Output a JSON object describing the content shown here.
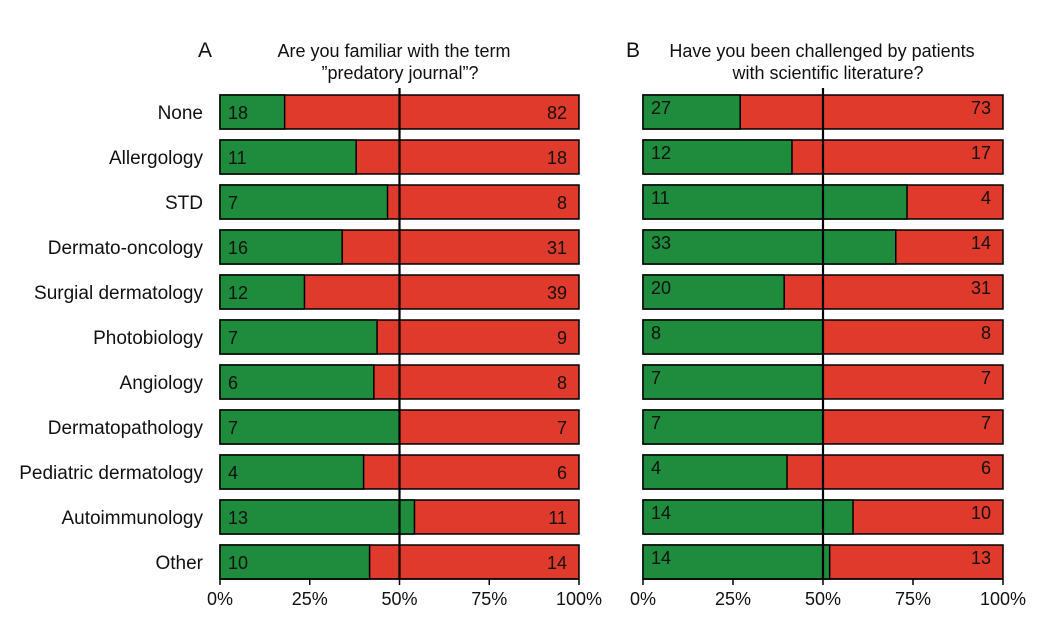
{
  "chart_data": [
    {
      "type": "bar",
      "orientation": "horizontal",
      "stacked": true,
      "normalized_percent": true,
      "panel_letter": "A",
      "title": "Are you familiar with the term\n”predatory journal”?",
      "categories": [
        "None",
        "Allergology",
        "STD",
        "Dermato-oncology",
        "Surgial dermatology",
        "Photobiology",
        "Angiology",
        "Dermatopathology",
        "Pediatric dermatology",
        "Autoimmunology",
        "Other"
      ],
      "series": [
        {
          "color": "#1e8c3c",
          "values": [
            18,
            11,
            7,
            16,
            12,
            7,
            6,
            7,
            4,
            13,
            10
          ]
        },
        {
          "color": "#e03a2c",
          "values": [
            82,
            18,
            8,
            31,
            39,
            9,
            8,
            7,
            6,
            11,
            14
          ]
        }
      ],
      "xticks": [
        "0%",
        "25%",
        "50%",
        "75%",
        "100%"
      ],
      "xlim": [
        0,
        100
      ],
      "reference_line": 50
    },
    {
      "type": "bar",
      "orientation": "horizontal",
      "stacked": true,
      "normalized_percent": true,
      "panel_letter": "B",
      "title": "Have you been challenged by patients\nwith scientific literature?",
      "categories": [
        "None",
        "Allergology",
        "STD",
        "Dermato-oncology",
        "Surgial dermatology",
        "Photobiology",
        "Angiology",
        "Dermatopathology",
        "Pediatric dermatology",
        "Autoimmunology",
        "Other"
      ],
      "series": [
        {
          "color": "#1e8c3c",
          "values": [
            27,
            12,
            11,
            33,
            20,
            8,
            7,
            7,
            4,
            14,
            14
          ]
        },
        {
          "color": "#e03a2c",
          "values": [
            73,
            17,
            4,
            14,
            31,
            8,
            7,
            7,
            6,
            10,
            13
          ]
        }
      ],
      "xticks": [
        "0%",
        "25%",
        "50%",
        "75%",
        "100%"
      ],
      "xlim": [
        0,
        100
      ],
      "reference_line": 50
    }
  ]
}
